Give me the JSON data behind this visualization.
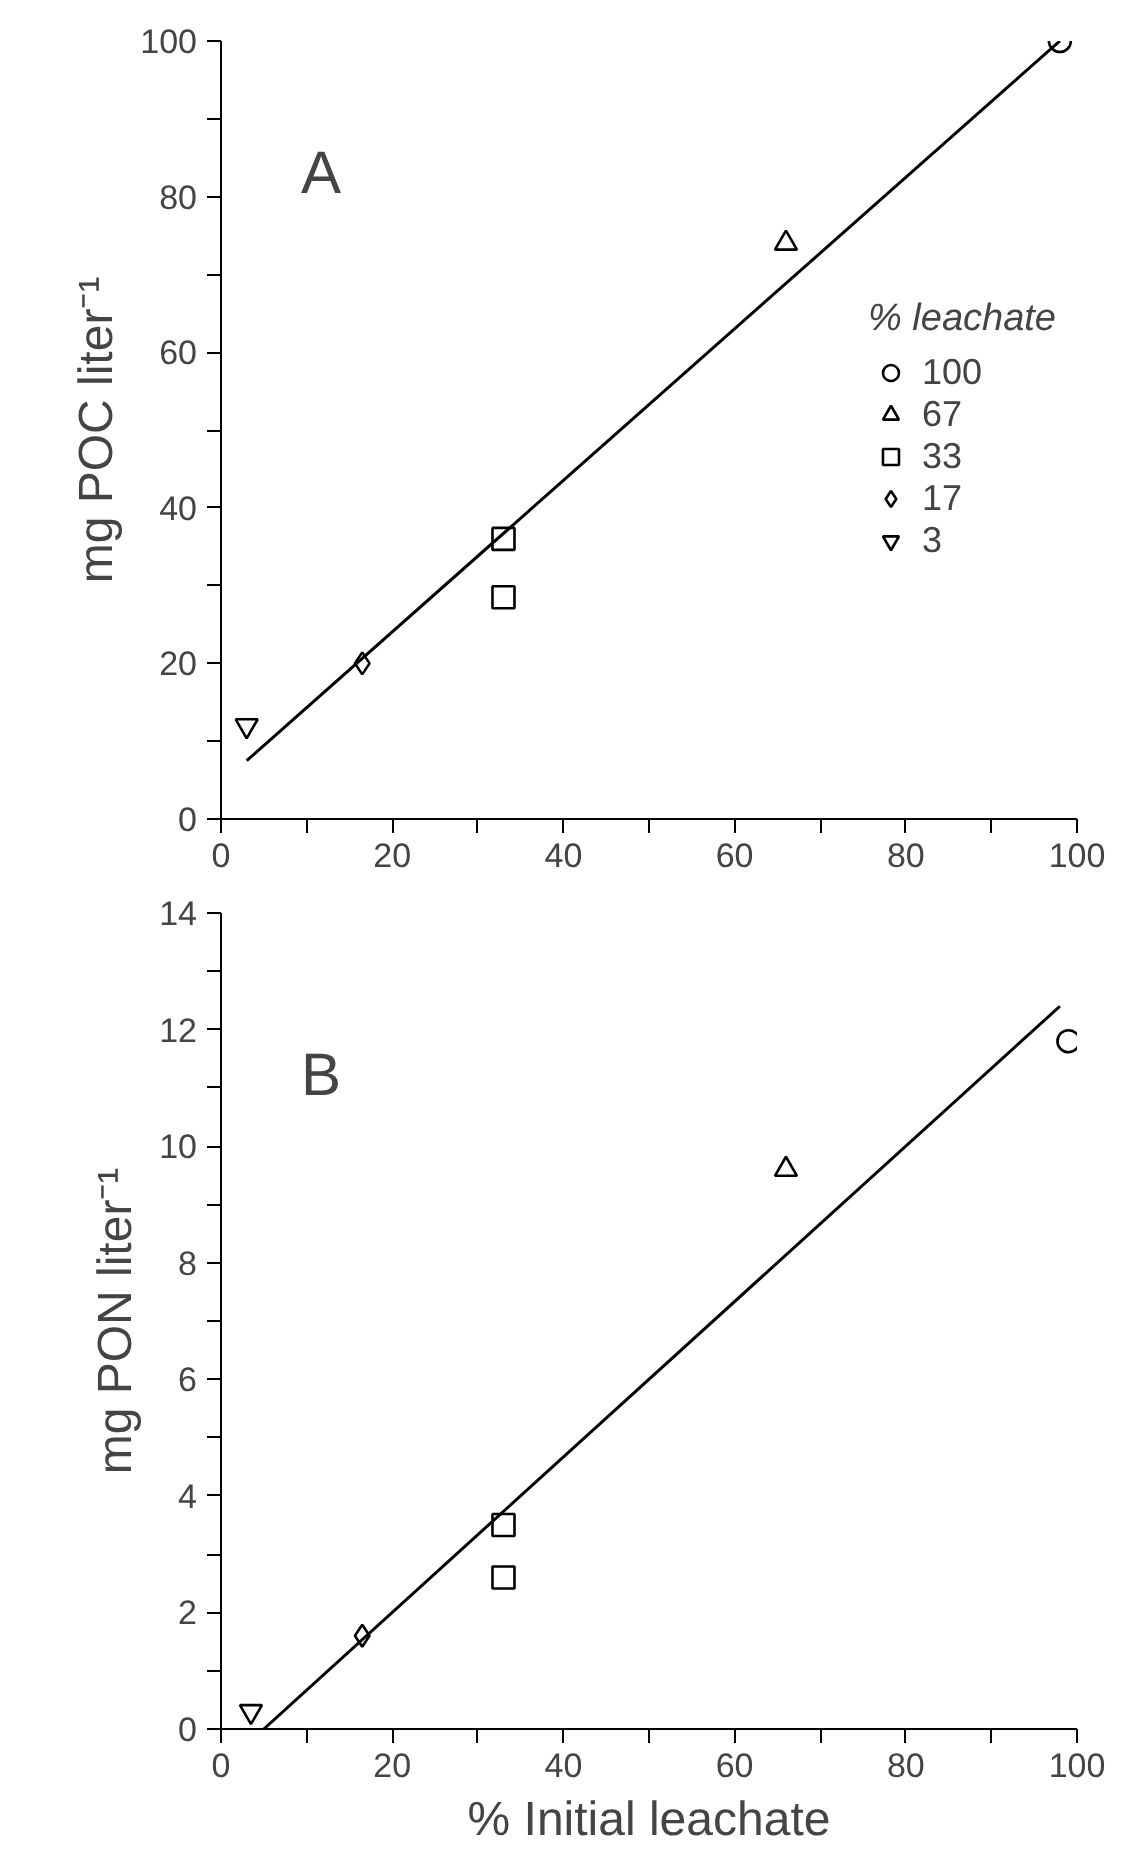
{
  "chart_data": [
    {
      "type": "scatter",
      "ylabel": "mg POC liter⁻¹",
      "legend_title": "% leachate",
      "legend": "right",
      "grid": false,
      "annotations": [
        "A"
      ],
      "xlim": [
        0,
        100
      ],
      "ylim": [
        0,
        100
      ],
      "xticks": [
        0,
        {
          "value": 10,
          "label": null
        },
        20,
        {
          "value": 30,
          "label": null
        },
        40,
        {
          "value": 50,
          "label": null
        },
        60,
        {
          "value": 70,
          "label": null
        },
        80,
        {
          "value": 90,
          "label": null
        },
        100
      ],
      "yticks": [
        0,
        {
          "value": 10,
          "label": null
        },
        20,
        {
          "value": 30,
          "label": null
        },
        40,
        {
          "value": 50,
          "label": null
        },
        60,
        {
          "value": 70,
          "label": null
        },
        80,
        {
          "value": 90,
          "label": null
        },
        100
      ],
      "series": [
        {
          "name": "100",
          "color": "#000000",
          "marker": "circle",
          "x": [
            98
          ],
          "values": [
            100
          ]
        },
        {
          "name": "67",
          "color": "#000000",
          "marker": "triangle",
          "x": [
            66
          ],
          "values": [
            74
          ]
        },
        {
          "name": "33",
          "color": "#000000",
          "marker": "square",
          "x": [
            33,
            33
          ],
          "values": [
            36,
            28.5
          ]
        },
        {
          "name": "17",
          "color": "#000000",
          "marker": "diamond",
          "x": [
            16.5
          ],
          "values": [
            20
          ]
        },
        {
          "name": "3",
          "color": "#000000",
          "marker": "triangle_down",
          "x": [
            3
          ],
          "values": [
            12
          ]
        },
        {
          "type": "line",
          "color": "#000000",
          "line_style": "solid",
          "x": [
            3,
            98
          ],
          "values": [
            7.5,
            100
          ]
        }
      ]
    },
    {
      "type": "scatter",
      "ylabel": "mg PON liter⁻¹",
      "xlabel": "% Initial leachate",
      "grid": false,
      "annotations": [
        "B"
      ],
      "xlim": [
        0,
        100
      ],
      "ylim": [
        0,
        14
      ],
      "xticks": [
        0,
        {
          "value": 10,
          "label": null
        },
        20,
        {
          "value": 30,
          "label": null
        },
        40,
        {
          "value": 50,
          "label": null
        },
        60,
        {
          "value": 70,
          "label": null
        },
        80,
        {
          "value": 90,
          "label": null
        },
        100
      ],
      "yticks": [
        0,
        {
          "value": 1,
          "label": null
        },
        2,
        {
          "value": 3,
          "label": null
        },
        4,
        {
          "value": 5,
          "label": null
        },
        6,
        {
          "value": 7,
          "label": null
        },
        8,
        {
          "value": 9,
          "label": null
        },
        10,
        {
          "value": 11,
          "label": null
        },
        12,
        {
          "value": 13,
          "label": null
        },
        14
      ],
      "series": [
        {
          "color": "#000000",
          "marker": "circle",
          "x": [
            99
          ],
          "values": [
            11.8
          ]
        },
        {
          "color": "#000000",
          "marker": "triangle",
          "x": [
            66
          ],
          "values": [
            9.6
          ]
        },
        {
          "color": "#000000",
          "marker": "square",
          "x": [
            33,
            33
          ],
          "values": [
            3.5,
            2.6
          ]
        },
        {
          "color": "#000000",
          "marker": "diamond",
          "x": [
            16.5
          ],
          "values": [
            1.6
          ]
        },
        {
          "color": "#000000",
          "marker": "triangle_down",
          "x": [
            3.5
          ],
          "values": [
            0.3
          ]
        },
        {
          "type": "line",
          "color": "#000000",
          "line_style": "solid",
          "x": [
            5,
            98
          ],
          "values": [
            0,
            12.4
          ]
        }
      ]
    }
  ]
}
